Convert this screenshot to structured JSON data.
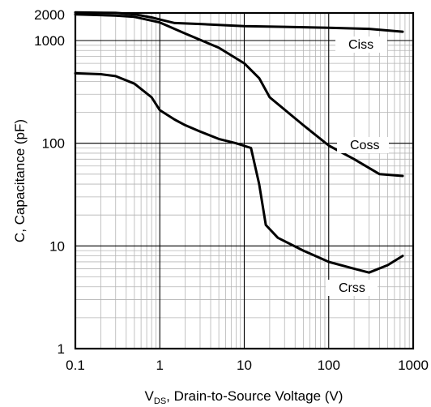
{
  "chart_data": {
    "type": "line",
    "xlabel_prefix": "V",
    "xlabel_subscript": "DS",
    "xlabel_rest": ", Drain-to-Source Voltage (V)",
    "ylabel": "C, Capacitance (pF)",
    "x_scale": "log",
    "y_scale": "log",
    "xlim": [
      0.1,
      1000
    ],
    "ylim": [
      1,
      2000
    ],
    "grid": true,
    "x_ticks": [
      0.1,
      1,
      10,
      100,
      1000
    ],
    "x_tick_labels": [
      "0.1",
      "1",
      "10",
      "100",
      "1000"
    ],
    "y_ticks": [
      1,
      10,
      100,
      1000,
      2000
    ],
    "y_tick_labels": [
      "1",
      "10",
      "100",
      "1000",
      "2000"
    ],
    "series": [
      {
        "name": "Ciss",
        "x": [
          0.1,
          0.3,
          0.5,
          0.8,
          1.0,
          1.5,
          3,
          10,
          30,
          100,
          300,
          750
        ],
        "y": [
          1880,
          1860,
          1800,
          1680,
          1600,
          1480,
          1450,
          1380,
          1360,
          1330,
          1300,
          1220
        ]
      },
      {
        "name": "Coss",
        "x": [
          0.1,
          0.3,
          0.5,
          1.0,
          2,
          5,
          10,
          15,
          20,
          50,
          100,
          200,
          400,
          750
        ],
        "y": [
          1800,
          1750,
          1700,
          1500,
          1170,
          850,
          600,
          430,
          280,
          150,
          95,
          70,
          50,
          48
        ]
      },
      {
        "name": "Crss",
        "x": [
          0.1,
          0.2,
          0.3,
          0.5,
          0.8,
          1.0,
          1.5,
          2,
          3,
          5,
          8,
          12,
          15,
          18,
          25,
          50,
          100,
          200,
          300,
          500,
          750
        ],
        "y": [
          480,
          470,
          450,
          380,
          280,
          210,
          170,
          150,
          130,
          110,
          100,
          90,
          40,
          16,
          12,
          9,
          7,
          6,
          5.5,
          6.5,
          8
        ]
      }
    ]
  }
}
